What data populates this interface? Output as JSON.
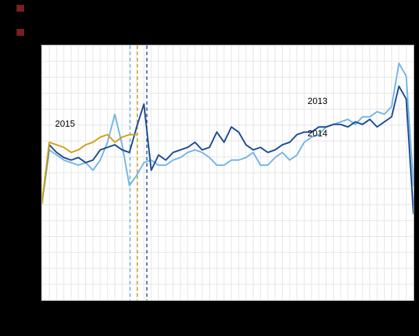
{
  "figure": {
    "background": "#000000",
    "plot_background": "#ffffff"
  },
  "chart_data": {
    "type": "line",
    "x_unit": "week",
    "x_start": 1,
    "xlim": [
      1,
      52
    ],
    "ylim": [
      0,
      100
    ],
    "grid": true,
    "grid_color": "#e4e4e4",
    "title": "",
    "xlabel": "",
    "ylabel": "",
    "legend_position": "inline-labels",
    "series": [
      {
        "name": "2013",
        "color": "#74b7e6",
        "values": [
          38,
          59,
          57,
          55,
          54,
          53,
          54,
          51,
          55,
          62,
          73,
          61,
          45,
          49,
          54,
          55,
          53,
          53,
          55,
          56,
          58,
          59,
          58,
          56,
          53,
          53,
          55,
          55,
          56,
          58,
          53,
          53,
          56,
          58,
          55,
          57,
          62,
          64,
          65,
          68,
          69,
          70,
          71,
          69,
          72,
          72,
          74,
          73,
          76,
          93,
          88,
          45
        ]
      },
      {
        "name": "2014",
        "color": "#1f4e94",
        "values": [
          38,
          61,
          58,
          56,
          55,
          56,
          54,
          55,
          59,
          60,
          61,
          59,
          58,
          68,
          77,
          51,
          57,
          55,
          58,
          59,
          60,
          62,
          59,
          60,
          66,
          62,
          68,
          66,
          61,
          59,
          60,
          58,
          59,
          61,
          62,
          65,
          66,
          66,
          68,
          68,
          69,
          69,
          68,
          70,
          69,
          71,
          68,
          70,
          72,
          84,
          79,
          34
        ]
      },
      {
        "name": "2015",
        "color": "#cfa118",
        "values": [
          38,
          62,
          61,
          60,
          58,
          59,
          61,
          62,
          64,
          65,
          62,
          64,
          65,
          65
        ]
      }
    ],
    "event_markers": [
      {
        "series": "2013",
        "week": 13.1,
        "color": "#74b7e6",
        "style": "dashed"
      },
      {
        "series": "2015",
        "week": 14.1,
        "color": "#cfa118",
        "style": "dashed"
      },
      {
        "series": "2014",
        "week": 15.4,
        "color": "#1f4e94",
        "style": "dashed"
      }
    ]
  }
}
